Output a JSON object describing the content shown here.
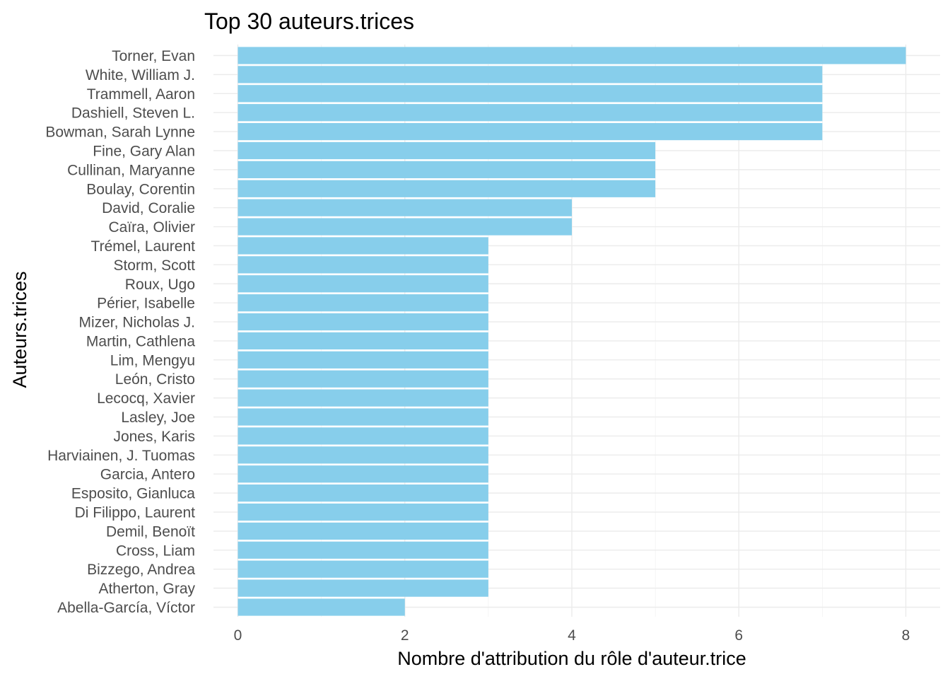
{
  "chart_data": {
    "type": "bar",
    "orientation": "horizontal",
    "title": "Top 30 auteurs.trices",
    "xlabel": "Nombre d'attribution du rôle d'auteur.trice",
    "ylabel": "Auteurs.trices",
    "xlim": [
      0,
      8
    ],
    "xticks": [
      "0",
      "2",
      "4",
      "6",
      "8"
    ],
    "bar_color": "#87CEEB",
    "grid": true,
    "categories": [
      "Torner, Evan",
      "White, William J.",
      "Trammell, Aaron",
      "Dashiell, Steven L.",
      "Bowman, Sarah Lynne",
      "Fine, Gary Alan",
      "Cullinan, Maryanne",
      "Boulay, Corentin",
      "David, Coralie",
      "Caïra, Olivier",
      "Trémel, Laurent",
      "Storm, Scott",
      "Roux, Ugo",
      "Périer, Isabelle",
      "Mizer, Nicholas J.",
      "Martin, Cathlena",
      "Lim, Mengyu",
      "León, Cristo",
      "Lecocq, Xavier",
      "Lasley, Joe",
      "Jones, Karis",
      "Harviainen, J. Tuomas",
      "Garcia, Antero",
      "Esposito, Gianluca",
      "Di Filippo, Laurent",
      "Demil, Benoït",
      "Cross, Liam",
      "Bizzego, Andrea",
      "Atherton, Gray",
      "Abella-García, Víctor"
    ],
    "values": [
      8,
      7,
      7,
      7,
      7,
      5,
      5,
      5,
      4,
      4,
      3,
      3,
      3,
      3,
      3,
      3,
      3,
      3,
      3,
      3,
      3,
      3,
      3,
      3,
      3,
      3,
      3,
      3,
      3,
      2
    ]
  }
}
